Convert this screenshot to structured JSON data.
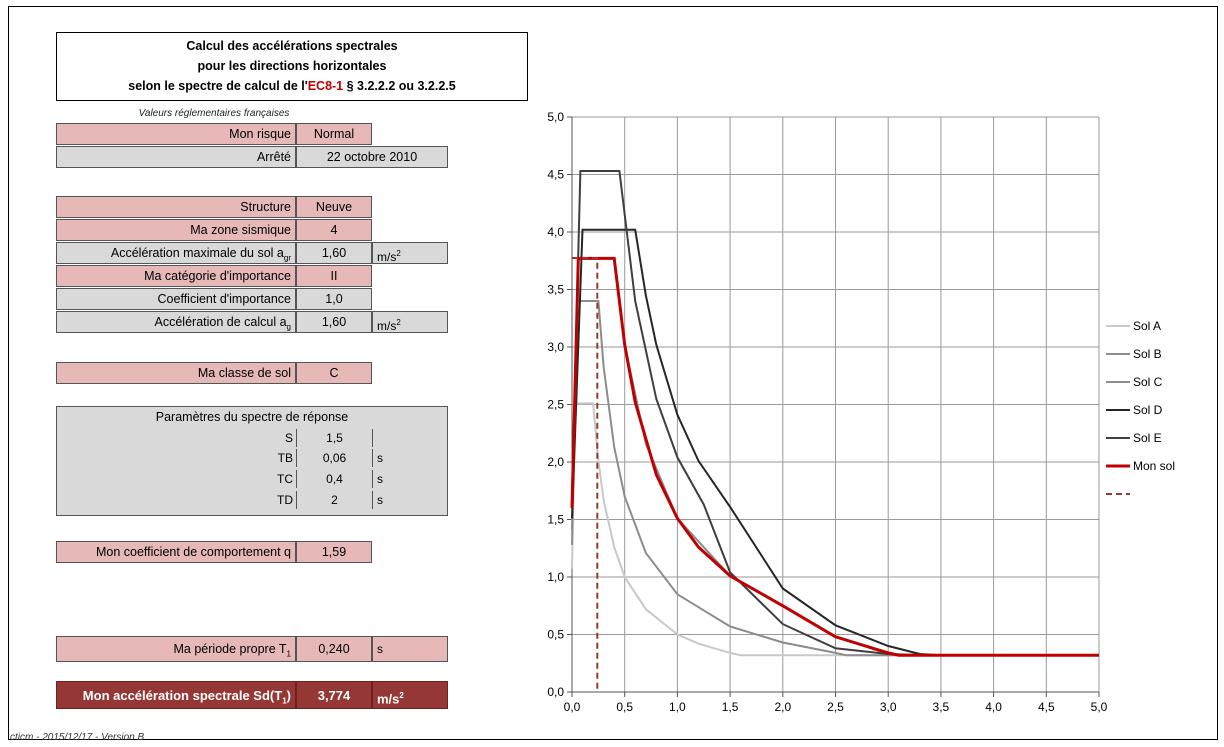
{
  "title": {
    "line1": "Calcul des accélérations spectrales",
    "line2": "pour les directions horizontales",
    "line3_pre": "selon le spectre de calcul de l'",
    "line3_ref": "EC8-1",
    "line3_post": " § 3.2.2.2 ou 3.2.2.5"
  },
  "subnote": "Valeurs réglementaires françaises",
  "risk": {
    "label": "Mon risque",
    "value": "Normal"
  },
  "arrete": {
    "label": "Arrêté",
    "value": "22 octobre 2010"
  },
  "structure": {
    "label": "Structure",
    "value": "Neuve"
  },
  "zone": {
    "label": "Ma zone sismique",
    "value": "4"
  },
  "agr": {
    "label": "Accélération maximale du sol a",
    "sub": "gr",
    "value": "1,60",
    "unit": "m/s",
    "unit_sup": "2"
  },
  "importance_cat": {
    "label": "Ma catégorie d'importance",
    "value": "II"
  },
  "importance_coef": {
    "label": "Coefficient d'importance",
    "value": "1,0"
  },
  "ag": {
    "label": "Accélération de calcul a",
    "sub": "g",
    "value": "1,60",
    "unit": "m/s",
    "unit_sup": "2"
  },
  "soil_class": {
    "label": "Ma classe de sol",
    "value": "C"
  },
  "params": {
    "title": "Paramètres du spectre de réponse",
    "rows": [
      {
        "label": "S",
        "value": "1,5",
        "unit": ""
      },
      {
        "label": "TB",
        "value": "0,06",
        "unit": "s"
      },
      {
        "label": "TC",
        "value": "0,4",
        "unit": "s"
      },
      {
        "label": "TD",
        "value": "2",
        "unit": "s"
      }
    ]
  },
  "q": {
    "label": "Mon coefficient de comportement q",
    "value": "1,59"
  },
  "period": {
    "label": "Ma période propre T",
    "sub": "1",
    "value": "0,240",
    "unit": "s"
  },
  "result": {
    "label": "Mon accélération spectrale Sd(T",
    "sub": "1",
    "label_end": ")",
    "value": "3,774",
    "unit": "m/s",
    "unit_sup": "2"
  },
  "footer": "cticm - 2015/12/17 - Version B",
  "chart_data": {
    "type": "line",
    "xlim": [
      0,
      5
    ],
    "ylim": [
      0,
      5
    ],
    "x_ticks": [
      "0,0",
      "0,5",
      "1,0",
      "1,5",
      "2,0",
      "2,5",
      "3,0",
      "3,5",
      "4,0",
      "4,5",
      "5,0"
    ],
    "y_ticks": [
      "0,0",
      "0,5",
      "1,0",
      "1,5",
      "2,0",
      "2,5",
      "3,0",
      "3,5",
      "4,0",
      "4,5",
      "5,0"
    ],
    "grid": true,
    "legend_position": "right",
    "series": [
      {
        "name": "Sol A",
        "color": "#c8c8c8",
        "width": 2,
        "x": [
          0,
          0.03,
          0.2,
          0.25,
          0.3,
          0.4,
          0.5,
          0.7,
          1.0,
          1.2,
          1.5,
          1.6,
          2.0,
          2.5,
          3.0,
          3.5,
          4.0,
          4.5,
          5.0
        ],
        "y": [
          1.07,
          2.51,
          2.51,
          2.01,
          1.67,
          1.26,
          1.0,
          0.72,
          0.5,
          0.42,
          0.34,
          0.32,
          0.32,
          0.32,
          0.32,
          0.32,
          0.32,
          0.32,
          0.32
        ]
      },
      {
        "name": "Sol B",
        "color": "#8c8c8c",
        "width": 2,
        "x": [
          0,
          0.05,
          0.25,
          0.3,
          0.4,
          0.5,
          0.7,
          1.0,
          1.5,
          2.0,
          2.5,
          2.6,
          3.0,
          3.5,
          4.0,
          4.5,
          5.0
        ],
        "y": [
          1.28,
          3.4,
          3.4,
          2.83,
          2.13,
          1.7,
          1.21,
          0.85,
          0.57,
          0.43,
          0.34,
          0.32,
          0.32,
          0.32,
          0.32,
          0.32,
          0.32
        ]
      },
      {
        "name": "Sol C",
        "color": "#8c8c8c",
        "width": 2,
        "x": [
          0,
          0.06,
          0.4,
          0.5,
          0.7,
          1.0,
          1.5,
          2.0,
          2.5,
          2.8,
          3.0,
          3.5,
          4.0,
          4.5,
          5.0
        ],
        "y": [
          1.41,
          3.77,
          3.77,
          3.02,
          2.16,
          1.51,
          1.01,
          0.75,
          0.48,
          0.39,
          0.33,
          0.32,
          0.32,
          0.32,
          0.32
        ]
      },
      {
        "name": "Sol D",
        "color": "#262626",
        "width": 2,
        "x": [
          0,
          0.1,
          0.6,
          0.7,
          0.8,
          1.0,
          1.2,
          1.5,
          2.0,
          2.5,
          3.0,
          3.3,
          3.5,
          4.0,
          4.5,
          5.0
        ],
        "y": [
          1.51,
          4.02,
          4.02,
          3.45,
          3.02,
          2.41,
          2.01,
          1.61,
          0.9,
          0.58,
          0.4,
          0.33,
          0.32,
          0.32,
          0.32,
          0.32
        ]
      },
      {
        "name": "Sol E",
        "color": "#3f3f3f",
        "width": 2,
        "x": [
          0,
          0.08,
          0.45,
          0.6,
          0.8,
          1.0,
          1.25,
          1.5,
          2.0,
          2.5,
          3.0,
          3.2,
          3.5,
          4.0,
          4.5,
          5.0
        ],
        "y": [
          1.7,
          4.53,
          4.53,
          3.4,
          2.55,
          2.04,
          1.63,
          1.04,
          0.59,
          0.38,
          0.33,
          0.32,
          0.32,
          0.32,
          0.32,
          0.32
        ]
      },
      {
        "name": "Mon sol",
        "color": "#c00000",
        "width": 3,
        "x": [
          0,
          0.06,
          0.4,
          0.5,
          0.6,
          0.8,
          1.0,
          1.2,
          1.5,
          2.0,
          2.5,
          3.0,
          3.1,
          3.5,
          4.0,
          4.5,
          5.0
        ],
        "y": [
          1.6,
          3.77,
          3.77,
          3.02,
          2.52,
          1.89,
          1.51,
          1.26,
          1.01,
          0.75,
          0.48,
          0.34,
          0.32,
          0.32,
          0.32,
          0.32,
          0.32
        ]
      },
      {
        "name": "",
        "color": "#953735",
        "width": 2,
        "dashed": true,
        "x": [
          0,
          0.24,
          0.24
        ],
        "y": [
          3.774,
          3.774,
          0
        ]
      }
    ]
  }
}
